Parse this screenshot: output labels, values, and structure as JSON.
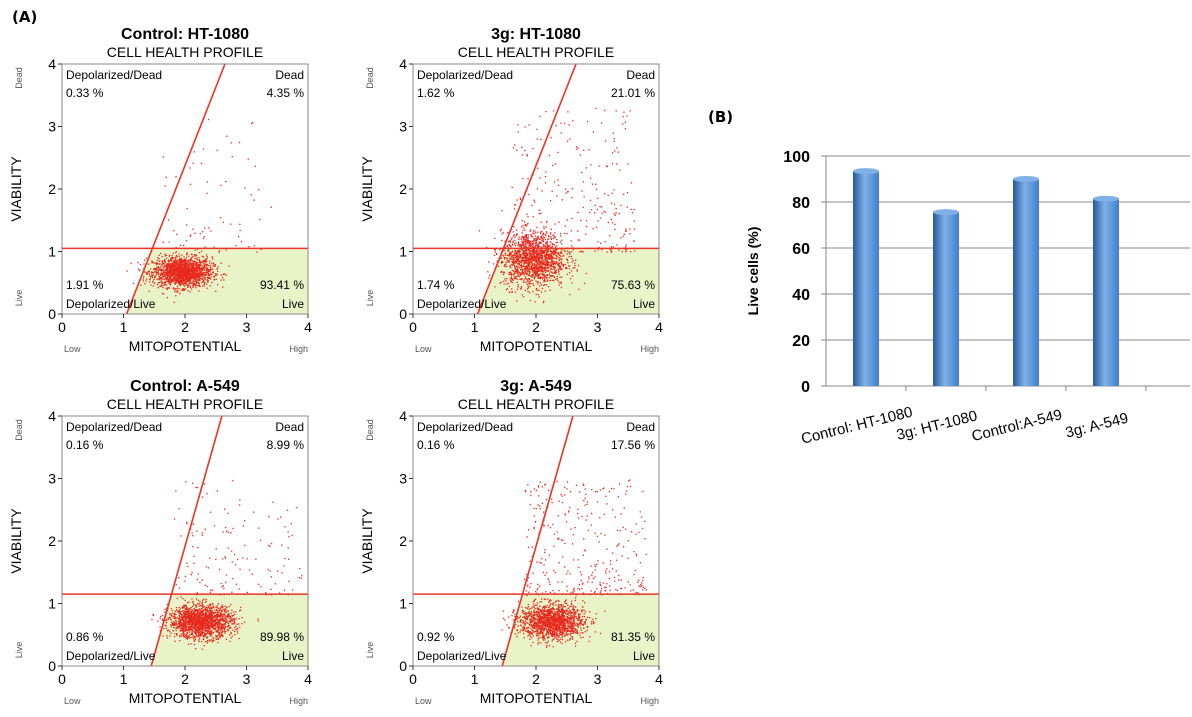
{
  "panel_labels": {
    "a": "(A)",
    "b": "(B)"
  },
  "colors": {
    "dot": "#e8281e",
    "gate": "#ee3326",
    "live_fill": "#e9f3c8",
    "bar_top": "#7fb0e6",
    "bar_mid": "#3f7fd0",
    "bar_dark": "#25589e"
  },
  "chart_data": [
    {
      "type": "scatter",
      "title": "Control: HT-1080",
      "subtitle": "CELL HEALTH PROFILE",
      "xlabel": "MITOPOTENTIAL",
      "x_low": "Low",
      "x_high": "High",
      "ylabel": "VIABILITY",
      "y_low": "Live",
      "y_high": "Dead",
      "xlim": [
        0,
        4
      ],
      "ylim": [
        0,
        4
      ],
      "xticks": [
        "0",
        "1",
        "2",
        "3",
        "4"
      ],
      "yticks": [
        "0",
        "1",
        "2",
        "3",
        "4"
      ],
      "threshold_y": 1.05,
      "diagonal": [
        [
          1.05,
          0
        ],
        [
          2.65,
          4
        ]
      ],
      "quadrants": {
        "depolarized_dead": "Depolarized/Dead",
        "dead": "Dead",
        "depolarized_live": "Depolarized/Live",
        "live": "Live"
      },
      "percents": {
        "depolarized_dead": "0.33 %",
        "dead": "4.35 %",
        "depolarized_live": "1.91 %",
        "live": "93.41 %"
      },
      "cluster": {
        "cx": 1.95,
        "cy": 0.68,
        "sx": 0.24,
        "sy": 0.12,
        "n": 1700,
        "spread_n": 70,
        "spread_x": [
          1.6,
          3.4
        ],
        "spread_y": [
          1.0,
          3.2
        ]
      }
    },
    {
      "type": "scatter",
      "title": "3g: HT-1080",
      "subtitle": "CELL HEALTH PROFILE",
      "xlabel": "MITOPOTENTIAL",
      "x_low": "Low",
      "x_high": "High",
      "ylabel": "VIABILITY",
      "y_low": "Live",
      "y_high": "Dead",
      "xlim": [
        0,
        4
      ],
      "ylim": [
        0,
        4
      ],
      "xticks": [
        "0",
        "1",
        "2",
        "3",
        "4"
      ],
      "yticks": [
        "0",
        "1",
        "2",
        "3",
        "4"
      ],
      "threshold_y": 1.05,
      "diagonal": [
        [
          1.05,
          0
        ],
        [
          2.65,
          4
        ]
      ],
      "quadrants": {
        "depolarized_dead": "Depolarized/Dead",
        "dead": "Dead",
        "depolarized_live": "Depolarized/Live",
        "live": "Live"
      },
      "percents": {
        "depolarized_dead": "1.62 %",
        "dead": "21.01 %",
        "depolarized_live": "1.74 %",
        "live": "75.63 %"
      },
      "cluster": {
        "cx": 1.95,
        "cy": 0.88,
        "sx": 0.26,
        "sy": 0.22,
        "n": 1500,
        "spread_n": 260,
        "spread_x": [
          1.6,
          3.6
        ],
        "spread_y": [
          1.0,
          3.3
        ]
      }
    },
    {
      "type": "scatter",
      "title": "Control: A-549",
      "subtitle": "CELL HEALTH PROFILE",
      "xlabel": "MITOPOTENTIAL",
      "x_low": "Low",
      "x_high": "High",
      "ylabel": "VIABILITY",
      "y_low": "Live",
      "y_high": "Dead",
      "xlim": [
        0,
        4
      ],
      "ylim": [
        0,
        4
      ],
      "xticks": [
        "0",
        "1",
        "2",
        "3",
        "4"
      ],
      "yticks": [
        "0",
        "1",
        "2",
        "3",
        "4"
      ],
      "threshold_y": 1.15,
      "diagonal": [
        [
          1.45,
          0
        ],
        [
          2.6,
          4
        ]
      ],
      "quadrants": {
        "depolarized_dead": "Depolarized/Dead",
        "dead": "Dead",
        "depolarized_live": "Depolarized/Live",
        "live": "Live"
      },
      "percents": {
        "depolarized_dead": "0.16 %",
        "dead": "8.99 %",
        "depolarized_live": "0.86 %",
        "live": "89.98 %"
      },
      "cluster": {
        "cx": 2.25,
        "cy": 0.72,
        "sx": 0.26,
        "sy": 0.13,
        "n": 1700,
        "spread_n": 140,
        "spread_x": [
          1.8,
          3.9
        ],
        "spread_y": [
          1.15,
          3.0
        ]
      }
    },
    {
      "type": "scatter",
      "title": "3g: A-549",
      "subtitle": "CELL HEALTH PROFILE",
      "xlabel": "MITOPOTENTIAL",
      "x_low": "Low",
      "x_high": "High",
      "ylabel": "VIABILITY",
      "y_low": "Live",
      "y_high": "Dead",
      "xlim": [
        0,
        4
      ],
      "ylim": [
        0,
        4
      ],
      "xticks": [
        "0",
        "1",
        "2",
        "3",
        "4"
      ],
      "yticks": [
        "0",
        "1",
        "2",
        "3",
        "4"
      ],
      "threshold_y": 1.15,
      "diagonal": [
        [
          1.45,
          0
        ],
        [
          2.6,
          4
        ]
      ],
      "quadrants": {
        "depolarized_dead": "Depolarized/Dead",
        "dead": "Dead",
        "depolarized_live": "Depolarized/Live",
        "live": "Live"
      },
      "percents": {
        "depolarized_dead": "0.16 %",
        "dead": "17.56 %",
        "depolarized_live": "0.92 %",
        "live": "81.35 %"
      },
      "cluster": {
        "cx": 2.25,
        "cy": 0.72,
        "sx": 0.26,
        "sy": 0.14,
        "n": 1500,
        "spread_n": 320,
        "spread_x": [
          1.8,
          3.8
        ],
        "spread_y": [
          1.15,
          3.0
        ]
      }
    },
    {
      "type": "bar",
      "categories": [
        "Control: HT-1080",
        "3g: HT-1080",
        "Control:A-549",
        "3g: A-549"
      ],
      "values": [
        93.4,
        75.6,
        90.0,
        81.4
      ],
      "ylabel": "Live cells (%)",
      "ylim": [
        0,
        100
      ],
      "yticks": [
        "0",
        "20",
        "40",
        "60",
        "80",
        "100"
      ],
      "grid": true
    }
  ]
}
